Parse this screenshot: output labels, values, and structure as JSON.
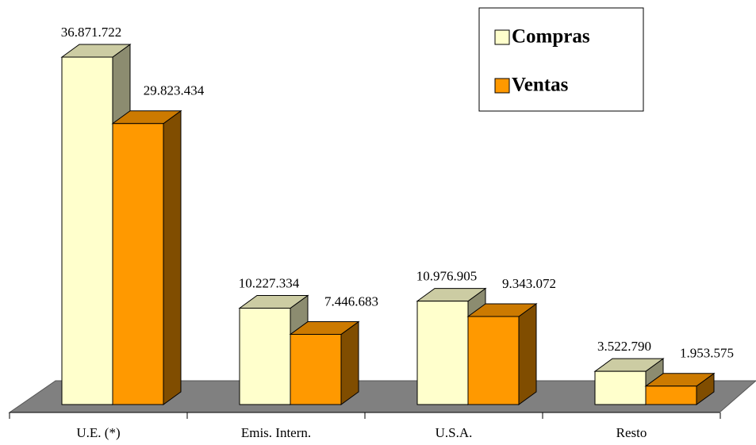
{
  "chart_data": {
    "type": "bar3d",
    "categories": [
      "U.E. (*)",
      "Emis. Intern.",
      "U.S.A.",
      "Resto"
    ],
    "series": [
      {
        "name": "Compras",
        "color": "#ffffcc",
        "values": [
          36871722,
          10227334,
          10976905,
          3522790
        ],
        "value_labels": [
          "36.871.722",
          "10.227.334",
          "10.976.905",
          "3.522.790"
        ]
      },
      {
        "name": "Ventas",
        "color": "#ff9900",
        "values": [
          29823434,
          7446683,
          9343072,
          1953575
        ],
        "value_labels": [
          "29.823.434",
          "7.446.683",
          "9.343.072",
          "1.953.575"
        ]
      }
    ],
    "legend": "top-right"
  }
}
